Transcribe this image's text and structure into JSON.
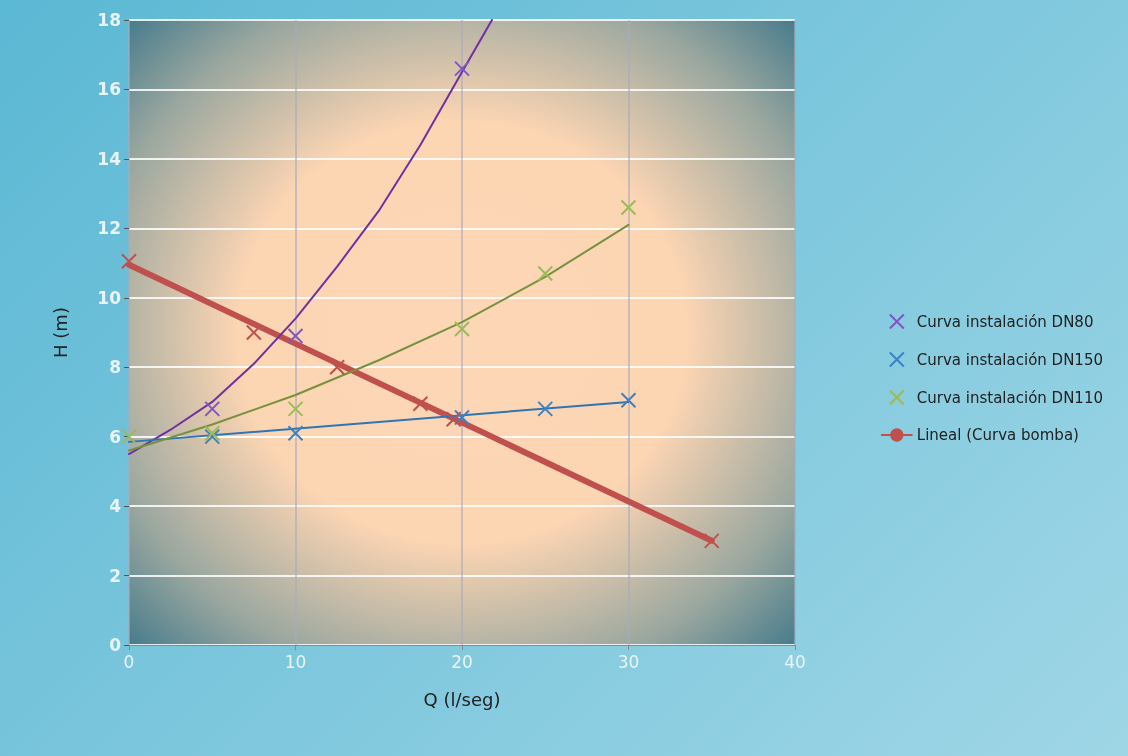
{
  "chart_data": {
    "type": "scatter",
    "xlabel": "Q (l/seg)",
    "ylabel": "H (m)",
    "xlim": [
      0,
      40
    ],
    "xticks": [
      0,
      10,
      20,
      30,
      40
    ],
    "ylim": [
      0,
      18
    ],
    "yticks": [
      0,
      2,
      4,
      6,
      8,
      10,
      12,
      14,
      16,
      18
    ],
    "grid": true,
    "legend": "right",
    "marker": "cross",
    "series": [
      {
        "name": "Curva instalación DN80",
        "color": "#7e57c2",
        "x": [
          5,
          10,
          20
        ],
        "values": [
          6.8,
          8.9,
          16.6
        ]
      },
      {
        "name": "Curva instalación DN150",
        "color": "#3b82c4",
        "x": [
          5,
          10,
          20,
          25,
          30
        ],
        "values": [
          6.0,
          6.1,
          6.55,
          6.8,
          7.05
        ]
      },
      {
        "name": "Curva instalación DN110",
        "color": "#9bbb59",
        "x": [
          0,
          5,
          10,
          20,
          25,
          30
        ],
        "values": [
          6.0,
          6.1,
          6.8,
          9.1,
          10.7,
          12.6
        ]
      },
      {
        "type": "line",
        "name": "Lineal (Curva bomba)",
        "color": "#c0504d",
        "marker": "none",
        "x": [
          0,
          35
        ],
        "values": [
          10.95,
          3.0
        ]
      },
      {
        "color": "#c0504d",
        "x": [
          0,
          7.5,
          12.5,
          17.5,
          19.5,
          35
        ],
        "values": [
          11.05,
          9.0,
          8.0,
          6.95,
          6.5,
          3.0
        ]
      },
      {
        "type": "line",
        "color": "#7030a0",
        "marker": "none",
        "x": [
          0,
          2.5,
          5,
          7.5,
          10,
          12.5,
          15,
          17.5,
          20,
          21.8
        ],
        "values": [
          5.5,
          6.2,
          7.0,
          8.1,
          9.4,
          10.9,
          12.5,
          14.4,
          16.5,
          18.0
        ]
      },
      {
        "type": "line",
        "color": "#2e75b6",
        "marker": "none",
        "x": [
          0,
          30
        ],
        "values": [
          5.85,
          7.0
        ]
      },
      {
        "type": "line",
        "color": "#76923c",
        "marker": "none",
        "x": [
          0,
          5,
          10,
          15,
          20,
          25,
          30
        ],
        "values": [
          5.6,
          6.35,
          7.2,
          8.2,
          9.3,
          10.6,
          12.1
        ]
      }
    ]
  }
}
